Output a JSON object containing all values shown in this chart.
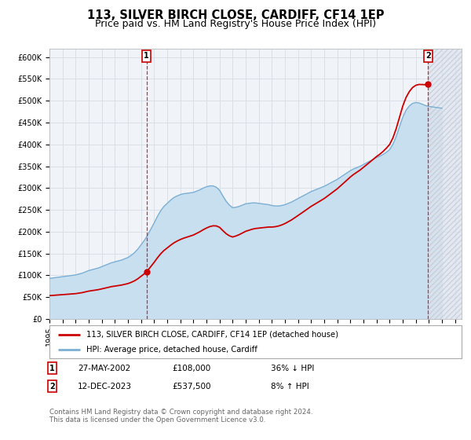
{
  "title": "113, SILVER BIRCH CLOSE, CARDIFF, CF14 1EP",
  "subtitle": "Price paid vs. HM Land Registry's House Price Index (HPI)",
  "ylim": [
    0,
    620000
  ],
  "yticks": [
    0,
    50000,
    100000,
    150000,
    200000,
    250000,
    300000,
    350000,
    400000,
    450000,
    500000,
    550000,
    600000
  ],
  "ytick_labels": [
    "£0",
    "£50K",
    "£100K",
    "£150K",
    "£200K",
    "£250K",
    "£300K",
    "£350K",
    "£400K",
    "£450K",
    "£500K",
    "£550K",
    "£600K"
  ],
  "xlim_start": 1995.0,
  "xlim_end": 2026.5,
  "xticks": [
    1995,
    1996,
    1997,
    1998,
    1999,
    2000,
    2001,
    2002,
    2003,
    2004,
    2005,
    2006,
    2007,
    2008,
    2009,
    2010,
    2011,
    2012,
    2013,
    2014,
    2015,
    2016,
    2017,
    2018,
    2019,
    2020,
    2021,
    2022,
    2023,
    2024,
    2025,
    2026
  ],
  "title_fontsize": 10.5,
  "subtitle_fontsize": 9,
  "tick_fontsize": 7,
  "legend_label1": "113, SILVER BIRCH CLOSE, CARDIFF, CF14 1EP (detached house)",
  "legend_label2": "HPI: Average price, detached house, Cardiff",
  "price_color": "#cc0000",
  "hpi_color": "#7bafd4",
  "hpi_fill_color": "#c8dff0",
  "marker1_date": 2002.41,
  "marker1_value": 108000,
  "marker2_date": 2023.95,
  "marker2_value": 537500,
  "note1_date": "27-MAY-2002",
  "note1_price": "£108,000",
  "note1_hpi": "36% ↓ HPI",
  "note2_date": "12-DEC-2023",
  "note2_price": "£537,500",
  "note2_hpi": "8% ↑ HPI",
  "footer_text": "Contains HM Land Registry data © Crown copyright and database right 2024.\nThis data is licensed under the Open Government Licence v3.0.",
  "bg_color": "#ffffff",
  "plot_bg_color": "#f0f4f8",
  "grid_color": "#d8dce4",
  "hatch_region_color": "#e0e4ed"
}
